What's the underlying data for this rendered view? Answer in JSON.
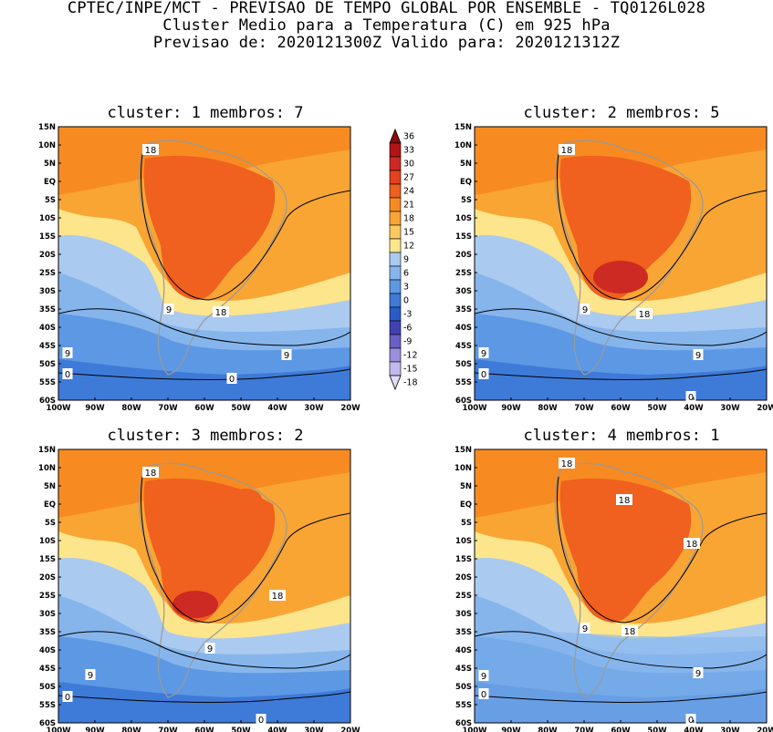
{
  "header": {
    "line1": "CPTEC/INPE/MCT - PREVISAO DE TEMPO GLOBAL POR ENSEMBLE - TQ0126L028",
    "line2": "Cluster Medio para a Temperatura (C) em 925 hPa",
    "line3": "Previsao de: 2020121300Z   Valido para: 2020121312Z"
  },
  "panels": [
    {
      "title": "cluster: 1   membros: 7",
      "contour_labels": [
        {
          "text": "18"
        },
        {
          "text": "9"
        },
        {
          "text": "18"
        },
        {
          "text": "9"
        },
        {
          "text": "9"
        },
        {
          "text": "0"
        },
        {
          "text": "0"
        }
      ]
    },
    {
      "title": "cluster: 2   membros: 5",
      "contour_labels": [
        {
          "text": "18"
        },
        {
          "text": "9"
        },
        {
          "text": "18"
        },
        {
          "text": "9"
        },
        {
          "text": "9"
        },
        {
          "text": "0"
        },
        {
          "text": "0"
        }
      ]
    },
    {
      "title": "cluster: 3   membros: 2",
      "contour_labels": [
        {
          "text": "18"
        },
        {
          "text": "18"
        },
        {
          "text": "9"
        },
        {
          "text": "9"
        },
        {
          "text": "0"
        },
        {
          "text": "0"
        }
      ]
    },
    {
      "title": "cluster: 4   membros: 1",
      "contour_labels": [
        {
          "text": "18"
        },
        {
          "text": "18"
        },
        {
          "text": "18"
        },
        {
          "text": "9"
        },
        {
          "text": "18"
        },
        {
          "text": "9"
        },
        {
          "text": "9"
        },
        {
          "text": "0"
        },
        {
          "text": "0"
        }
      ]
    }
  ],
  "axes": {
    "lat_labels": [
      "15N",
      "10N",
      "5N",
      "EQ",
      "5S",
      "10S",
      "15S",
      "20S",
      "25S",
      "30S",
      "35S",
      "40S",
      "45S",
      "50S",
      "55S",
      "60S"
    ],
    "lon_labels": [
      "100W",
      "90W",
      "80W",
      "70W",
      "60W",
      "50W",
      "40W",
      "30W",
      "20W"
    ]
  },
  "colorbar": {
    "labels": [
      "36",
      "33",
      "30",
      "27",
      "24",
      "21",
      "18",
      "15",
      "12",
      "9",
      "6",
      "3",
      "0",
      "-3",
      "-6",
      "-9",
      "-12",
      "-15",
      "-18"
    ],
    "colors": [
      "#8a0b0b",
      "#b01414",
      "#cc2a22",
      "#e5401f",
      "#f0601e",
      "#f78b21",
      "#f9a534",
      "#fdc85e",
      "#fde58c",
      "#aacaf0",
      "#86b5ec",
      "#5d98e4",
      "#3e7ad8",
      "#2a5cc8",
      "#4242b5",
      "#6a5fc6",
      "#9b8fdc",
      "#c2b9ec",
      "#e2dcf8"
    ]
  }
}
